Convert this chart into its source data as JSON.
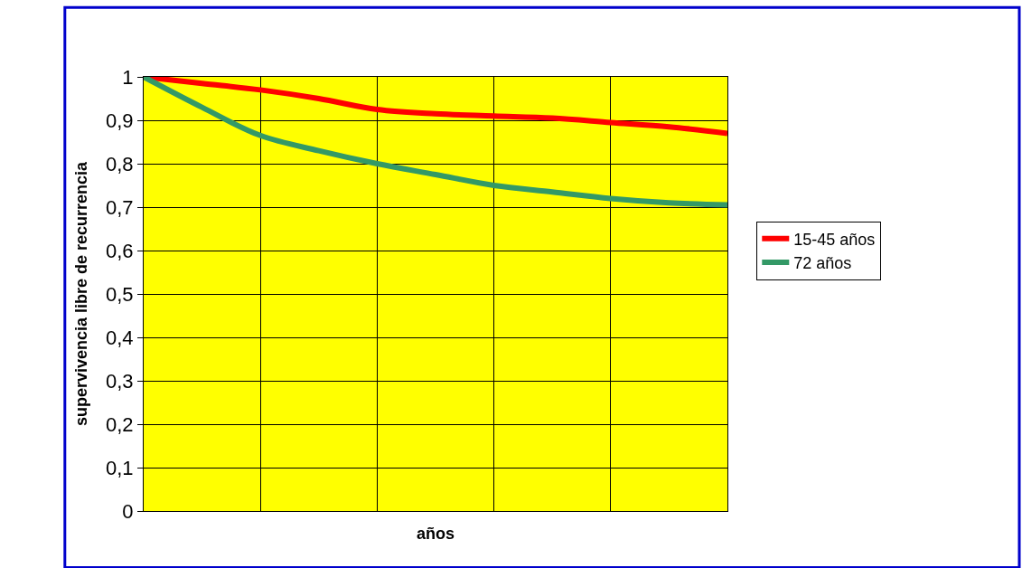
{
  "chart_data": {
    "type": "line",
    "xlabel": "años",
    "ylabel": "supervivencia libre de recurrencia",
    "categories": [
      null,
      null,
      null,
      null,
      null,
      null,
      null,
      null,
      null,
      null,
      null
    ],
    "series": [
      {
        "name": "15-45 años",
        "color": "#ff0000",
        "values": [
          1.0,
          0.985,
          0.97,
          0.95,
          0.925,
          0.915,
          0.91,
          0.905,
          0.895,
          0.885,
          0.87
        ]
      },
      {
        "name": "72 años",
        "color": "#339966",
        "values": [
          1.0,
          0.93,
          0.865,
          0.83,
          0.8,
          0.775,
          0.75,
          0.735,
          0.72,
          0.71,
          0.705
        ]
      }
    ],
    "ylim": [
      0,
      1
    ],
    "yticks": [
      0,
      {
        "value": 0.1,
        "label": "0,1"
      },
      {
        "value": 0.2,
        "label": "0,2"
      },
      {
        "value": 0.3,
        "label": "0,3"
      },
      {
        "value": 0.4,
        "label": "0,4"
      },
      {
        "value": 0.5,
        "label": "0,5"
      },
      {
        "value": 0.6,
        "label": "0,6"
      },
      {
        "value": 0.7,
        "label": "0,7"
      },
      {
        "value": 0.8,
        "label": "0,8"
      },
      {
        "value": 0.9,
        "label": "0,9"
      },
      1
    ],
    "grid": true,
    "legend": "right",
    "marker": "none",
    "line_style": "solid"
  }
}
